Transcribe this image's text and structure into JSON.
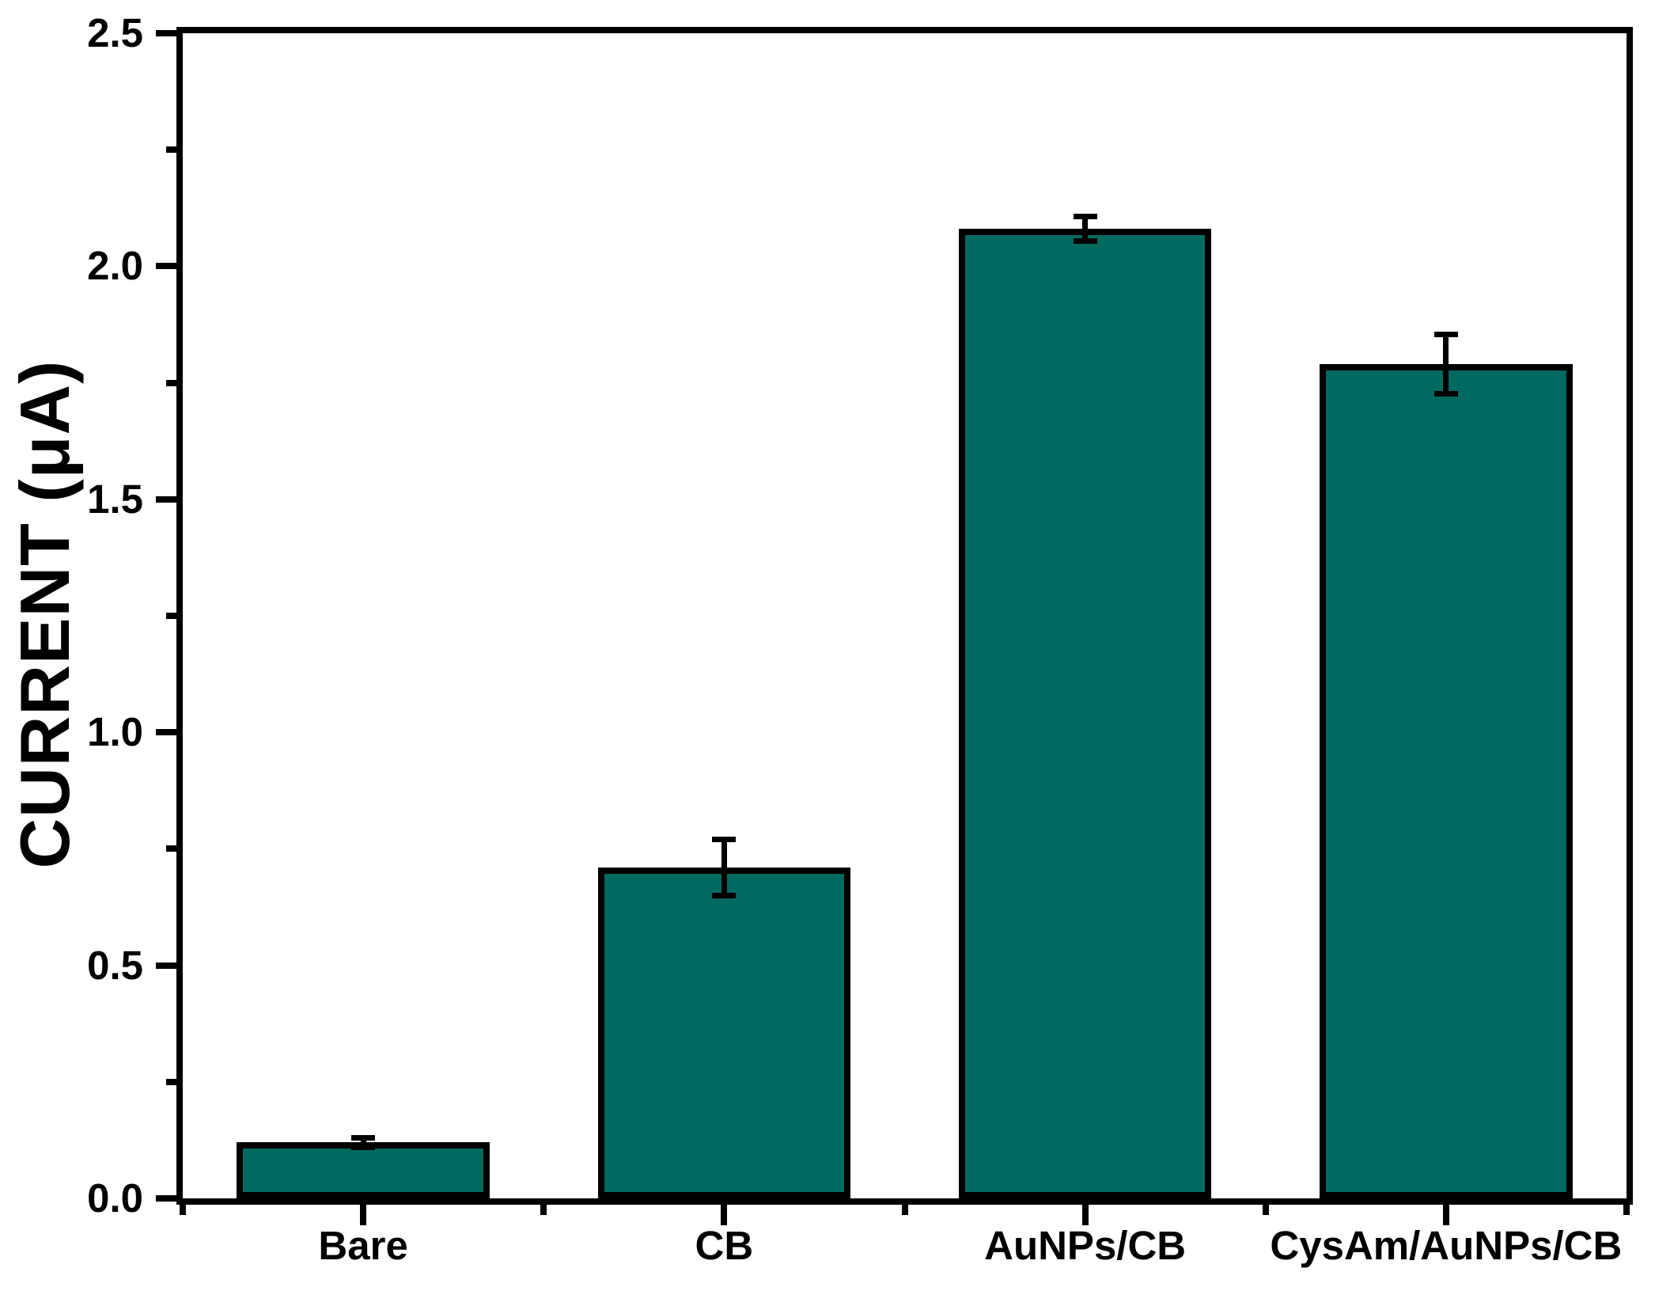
{
  "figure": {
    "background_color": "#ffffff"
  },
  "chart_data": {
    "type": "bar",
    "title": "",
    "xlabel": "",
    "ylabel": "CURRENT (μA)",
    "categories": [
      "Bare",
      "CB",
      "AuNPs/CB",
      "CysAm/AuNPs/CB"
    ],
    "values": [
      0.12,
      0.71,
      2.08,
      1.79
    ],
    "errors": [
      0.01,
      0.06,
      0.026,
      0.064
    ],
    "ylim": [
      0,
      2.5
    ],
    "ytick_major_step": 0.5,
    "ytick_minor_step": 0.25,
    "ytick_labels": [
      "0.0",
      "0.5",
      "1.0",
      "1.5",
      "2.0",
      "2.5"
    ],
    "grid": false,
    "legend": null,
    "bar_color": "#006A60",
    "axis_color": "#000000",
    "bar_width_fraction": 0.7,
    "error_bar_cap_width": 30
  }
}
